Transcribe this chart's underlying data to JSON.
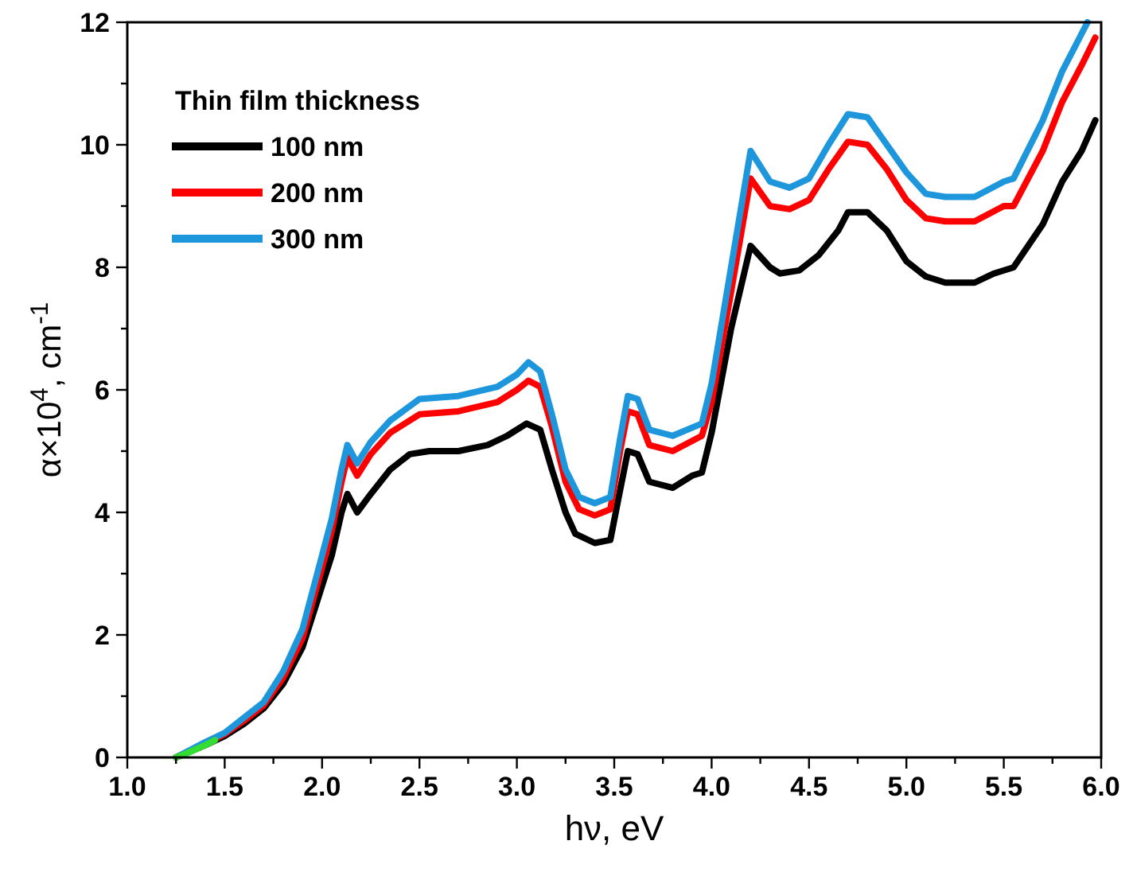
{
  "chart_data": {
    "type": "line",
    "xlabel": "hν, eV",
    "ylabel": "α×10$^{4}$, cm$^{-1}$",
    "legend_title": "Thin film thickness",
    "legend": "top left",
    "grid": false,
    "line_style": "solid",
    "xlim": [
      1.0,
      6.0
    ],
    "ylim": [
      0,
      12
    ],
    "xticks": [
      {
        "value": 1,
        "label": "1.0"
      },
      {
        "value": 1.25,
        "label": null
      },
      {
        "value": 1.5,
        "label": "1.5"
      },
      {
        "value": 1.75,
        "label": null
      },
      {
        "value": 2,
        "label": "2.0"
      },
      {
        "value": 2.25,
        "label": null
      },
      {
        "value": 2.5,
        "label": "2.5"
      },
      {
        "value": 2.75,
        "label": null
      },
      {
        "value": 3,
        "label": "3.0"
      },
      {
        "value": 3.25,
        "label": null
      },
      {
        "value": 3.5,
        "label": "3.5"
      },
      {
        "value": 3.75,
        "label": null
      },
      {
        "value": 4,
        "label": "4.0"
      },
      {
        "value": 4.25,
        "label": null
      },
      {
        "value": 4.5,
        "label": "4.5"
      },
      {
        "value": 4.75,
        "label": null
      },
      {
        "value": 5,
        "label": "5.0"
      },
      {
        "value": 5.25,
        "label": null
      },
      {
        "value": 5.5,
        "label": "5.5"
      },
      {
        "value": 5.75,
        "label": null
      },
      {
        "value": 6,
        "label": "6.0"
      }
    ],
    "yticks": [
      0,
      {
        "value": 1,
        "label": null
      },
      2,
      {
        "value": 3,
        "label": null
      },
      4,
      {
        "value": 5,
        "label": null
      },
      6,
      {
        "value": 7,
        "label": null
      },
      8,
      {
        "value": 9,
        "label": null
      },
      10,
      {
        "value": 11,
        "label": null
      },
      12
    ],
    "series": [
      {
        "name": "100 nm",
        "color": "#000000",
        "x": [
          1.25,
          1.4,
          1.5,
          1.6,
          1.7,
          1.8,
          1.9,
          1.95,
          2.0,
          2.05,
          2.1,
          2.13,
          2.18,
          2.25,
          2.35,
          2.45,
          2.55,
          2.7,
          2.85,
          2.95,
          3.05,
          3.12,
          3.18,
          3.25,
          3.3,
          3.4,
          3.48,
          3.52,
          3.57,
          3.62,
          3.68,
          3.8,
          3.9,
          3.95,
          4.0,
          4.1,
          4.2,
          4.3,
          4.35,
          4.45,
          4.55,
          4.65,
          4.7,
          4.8,
          4.9,
          5.0,
          5.1,
          5.2,
          5.35,
          5.45,
          5.55,
          5.7,
          5.8,
          5.9,
          5.97
        ],
        "values": [
          0,
          0.2,
          0.35,
          0.55,
          0.8,
          1.2,
          1.8,
          2.3,
          2.8,
          3.3,
          4.0,
          4.3,
          4.0,
          4.3,
          4.7,
          4.95,
          5.0,
          5.0,
          5.1,
          5.25,
          5.45,
          5.35,
          4.7,
          4.0,
          3.65,
          3.5,
          3.55,
          4.2,
          5.0,
          4.95,
          4.5,
          4.4,
          4.6,
          4.65,
          5.3,
          7.0,
          8.35,
          8.0,
          7.9,
          7.95,
          8.2,
          8.6,
          8.9,
          8.9,
          8.6,
          8.1,
          7.85,
          7.75,
          7.75,
          7.9,
          8.0,
          8.7,
          9.4,
          9.9,
          10.4
        ]
      },
      {
        "name": "200 nm",
        "color": "#ff0000",
        "x": [
          1.25,
          1.4,
          1.5,
          1.6,
          1.7,
          1.8,
          1.9,
          2.0,
          2.05,
          2.1,
          2.13,
          2.18,
          2.25,
          2.35,
          2.5,
          2.7,
          2.9,
          3.0,
          3.06,
          3.12,
          3.18,
          3.25,
          3.32,
          3.4,
          3.48,
          3.53,
          3.57,
          3.62,
          3.68,
          3.8,
          3.95,
          4.0,
          4.1,
          4.2,
          4.3,
          4.4,
          4.5,
          4.6,
          4.7,
          4.8,
          4.9,
          5.0,
          5.1,
          5.2,
          5.35,
          5.5,
          5.55,
          5.7,
          5.8,
          5.9,
          5.97
        ],
        "values": [
          0,
          0.22,
          0.38,
          0.6,
          0.85,
          1.3,
          1.95,
          3.1,
          3.7,
          4.5,
          4.9,
          4.6,
          4.95,
          5.3,
          5.6,
          5.65,
          5.8,
          6.0,
          6.15,
          6.05,
          5.4,
          4.5,
          4.05,
          3.95,
          4.05,
          5.0,
          5.65,
          5.6,
          5.1,
          5.0,
          5.25,
          5.8,
          7.6,
          9.45,
          9.0,
          8.95,
          9.1,
          9.6,
          10.05,
          10.0,
          9.6,
          9.1,
          8.8,
          8.75,
          8.75,
          9.0,
          9.0,
          9.9,
          10.7,
          11.3,
          11.75
        ]
      },
      {
        "name": "300 nm",
        "color": "#1e96dc",
        "x": [
          1.25,
          1.4,
          1.5,
          1.6,
          1.7,
          1.8,
          1.9,
          2.0,
          2.05,
          2.1,
          2.13,
          2.18,
          2.25,
          2.35,
          2.5,
          2.7,
          2.9,
          3.0,
          3.06,
          3.12,
          3.18,
          3.25,
          3.32,
          3.4,
          3.48,
          3.53,
          3.57,
          3.62,
          3.68,
          3.8,
          3.95,
          4.0,
          4.1,
          4.2,
          4.3,
          4.4,
          4.5,
          4.6,
          4.7,
          4.8,
          4.9,
          5.0,
          5.1,
          5.2,
          5.35,
          5.5,
          5.55,
          5.7,
          5.8,
          5.93
        ],
        "values": [
          0,
          0.25,
          0.4,
          0.65,
          0.9,
          1.4,
          2.1,
          3.3,
          3.9,
          4.7,
          5.1,
          4.8,
          5.15,
          5.5,
          5.85,
          5.9,
          6.05,
          6.25,
          6.45,
          6.3,
          5.6,
          4.7,
          4.25,
          4.15,
          4.25,
          5.2,
          5.9,
          5.85,
          5.35,
          5.25,
          5.45,
          6.1,
          8.0,
          9.9,
          9.4,
          9.3,
          9.45,
          10.0,
          10.5,
          10.45,
          10.0,
          9.55,
          9.2,
          9.15,
          9.15,
          9.4,
          9.45,
          10.4,
          11.2,
          12.0
        ]
      },
      {
        "color": "#33dd33",
        "x": [
          1.25,
          1.3,
          1.35,
          1.4,
          1.45
        ],
        "values": [
          0,
          0.06,
          0.13,
          0.2,
          0.28
        ]
      }
    ]
  }
}
